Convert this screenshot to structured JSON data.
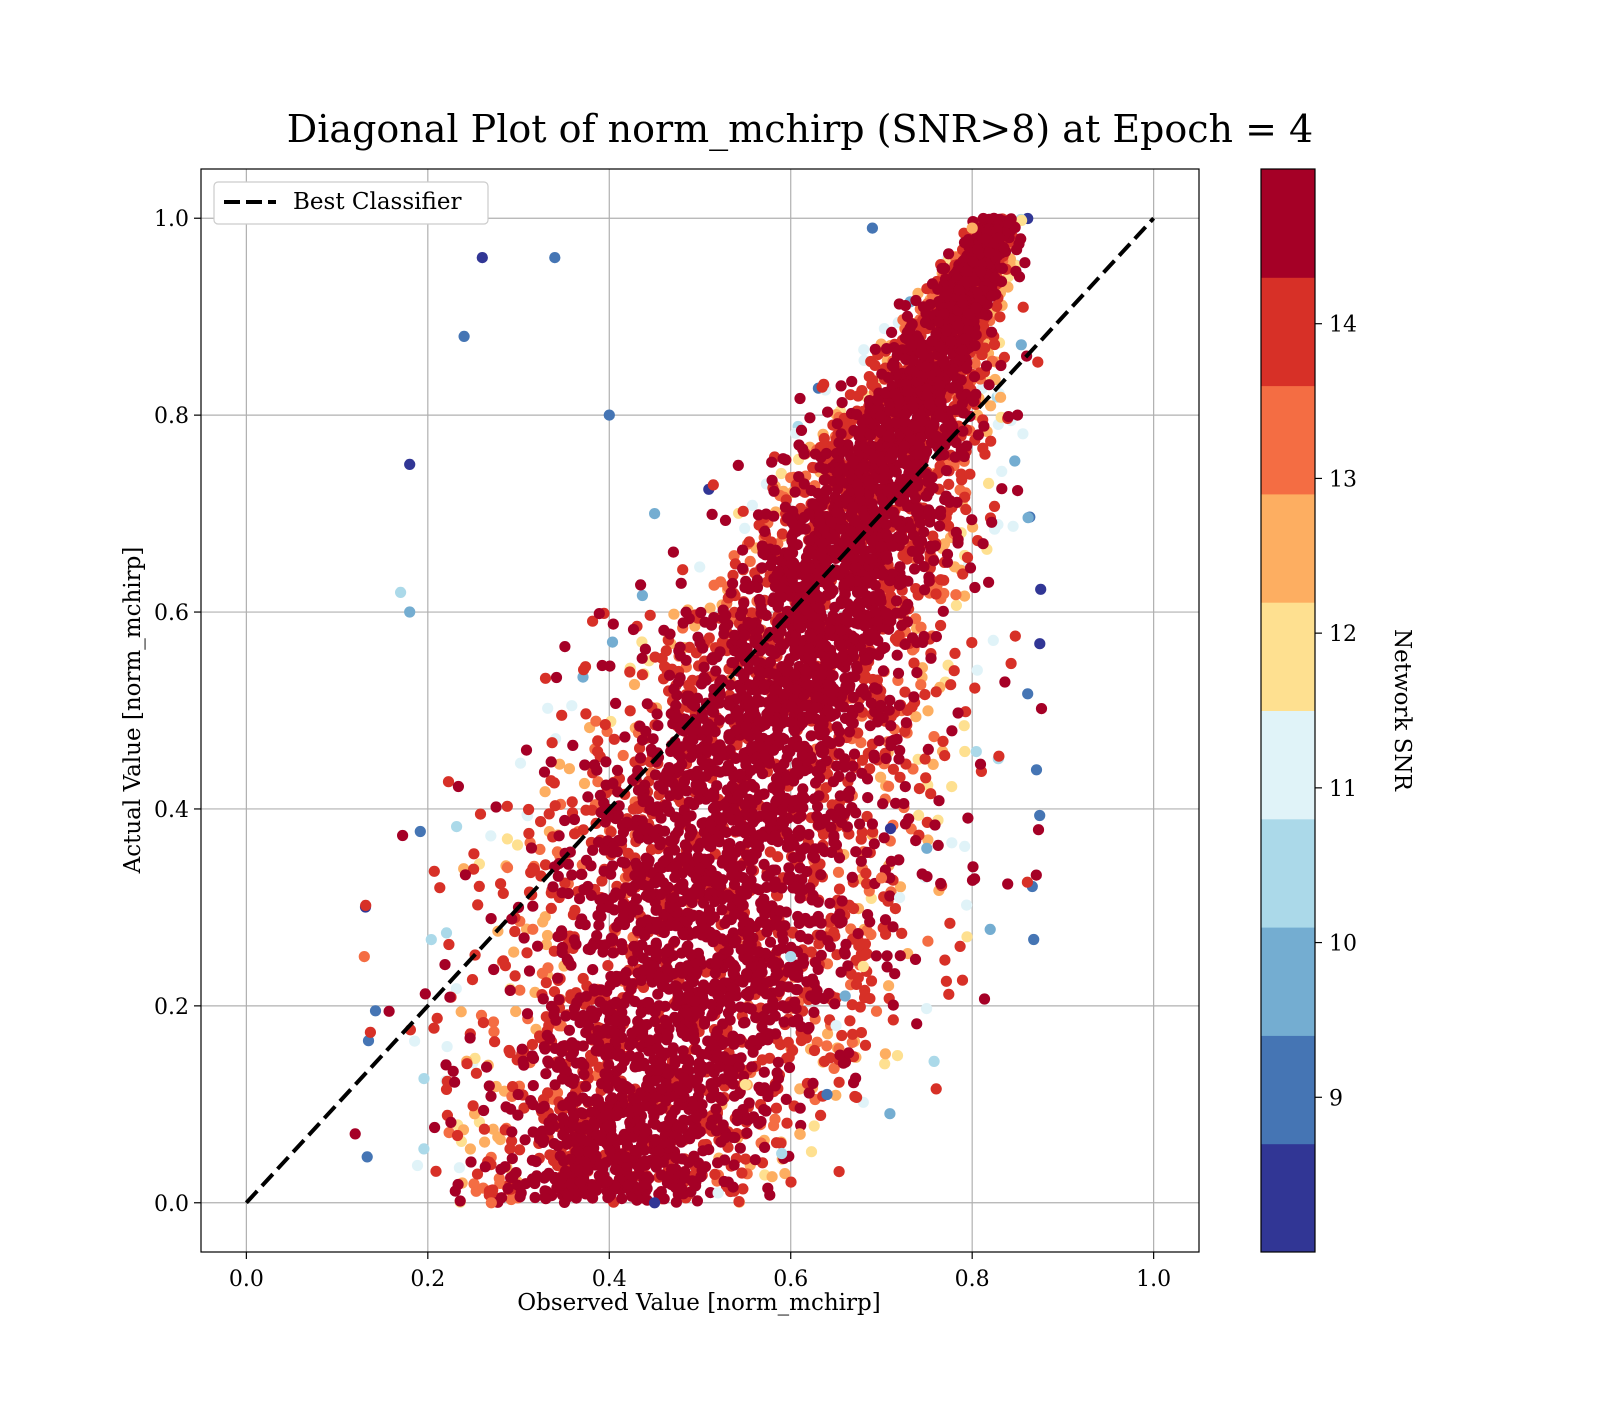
{
  "chart_data": {
    "type": "scatter",
    "title": "Diagonal Plot of norm_mchirp (SNR>8) at Epoch = 4",
    "xlabel": "Observed Value [norm_mchirp]",
    "ylabel": "Actual Value [norm_mchirp]",
    "xlim": [
      -0.05,
      1.05
    ],
    "ylim": [
      -0.05,
      1.05
    ],
    "x_ticks": [
      "0.0",
      "0.2",
      "0.4",
      "0.6",
      "0.8",
      "1.0"
    ],
    "y_ticks": [
      "0.0",
      "0.2",
      "0.4",
      "0.6",
      "0.8",
      "1.0"
    ],
    "grid": true,
    "legend": {
      "placement": "top-left",
      "entries": [
        "Best Classifier"
      ]
    },
    "reference_line": {
      "name": "Best Classifier",
      "x": [
        0.0,
        1.0
      ],
      "y": [
        0.0,
        1.0
      ],
      "style": "dashed",
      "color": "#000000"
    },
    "colorbar": {
      "label": "Network SNR",
      "range": [
        8,
        15
      ],
      "ticks": [
        "9",
        "10",
        "11",
        "12",
        "13",
        "14"
      ],
      "colors": [
        "#313695",
        "#4575b4",
        "#74add1",
        "#abd9e9",
        "#e0f3f8",
        "#fee090",
        "#fdae61",
        "#f46d43",
        "#d73027",
        "#a50026"
      ]
    },
    "series": [
      {
        "points_sample": [
          [
            0.18,
            0.75,
            8.5
          ],
          [
            0.26,
            0.96,
            8.7
          ],
          [
            0.34,
            0.96,
            8.8
          ],
          [
            0.24,
            0.88,
            9.2
          ],
          [
            0.17,
            0.62,
            10.4
          ],
          [
            0.18,
            0.6,
            10.1
          ],
          [
            0.75,
            0.36,
            9.6
          ],
          [
            0.71,
            0.38,
            8.5
          ],
          [
            0.66,
            0.21,
            9.8
          ],
          [
            0.64,
            0.11,
            8.9
          ],
          [
            0.59,
            0.05,
            10.3
          ],
          [
            0.61,
            0.07,
            12.8
          ],
          [
            0.65,
            0.18,
            11.3
          ],
          [
            0.68,
            0.24,
            12.2
          ],
          [
            0.72,
            0.31,
            11.1
          ],
          [
            0.7,
            0.33,
            13.3
          ],
          [
            0.73,
            0.39,
            14.4
          ],
          [
            0.85,
            0.8,
            14.6
          ],
          [
            0.86,
            0.86,
            14.5
          ],
          [
            0.12,
            0.07,
            14.8
          ],
          [
            0.13,
            0.25,
            13.2
          ],
          [
            0.45,
            0.0,
            8.6
          ],
          [
            0.27,
            0.0,
            13.1
          ],
          [
            0.52,
            0.01,
            10.8
          ],
          [
            0.69,
            0.99,
            8.8
          ],
          [
            0.83,
            0.98,
            14.5
          ],
          [
            0.8,
            0.99,
            12.6
          ],
          [
            0.48,
            0.48,
            14.7
          ],
          [
            0.55,
            0.55,
            14.6
          ],
          [
            0.3,
            0.3,
            14.8
          ],
          [
            0.62,
            0.7,
            14.5
          ],
          [
            0.4,
            0.3,
            14.7
          ],
          [
            0.75,
            0.82,
            14.6
          ],
          [
            0.22,
            0.14,
            14.4
          ],
          [
            0.45,
            0.7,
            10.0
          ],
          [
            0.4,
            0.8,
            9.2
          ],
          [
            0.6,
            0.25,
            10.5
          ],
          [
            0.55,
            0.12,
            11.8
          ]
        ]
      }
    ]
  }
}
